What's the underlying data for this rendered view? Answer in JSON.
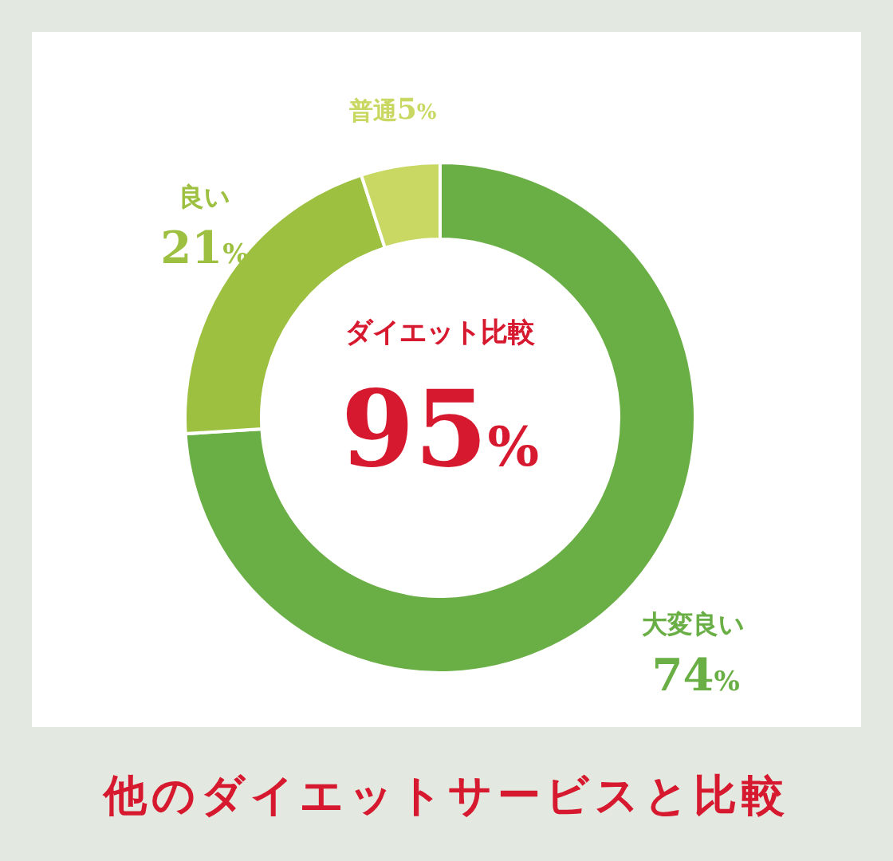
{
  "chart_data": {
    "type": "donut",
    "title": "他のダイエットサービスと比較",
    "categories": [
      "大変良い",
      "良い",
      "普通"
    ],
    "values": [
      74,
      21,
      5
    ],
    "value_labels": [
      "74%",
      "21%",
      "5%"
    ],
    "colors": [
      "#6aaf46",
      "#9dc040",
      "#c8d862"
    ],
    "annotations": [
      "ダイエット比較",
      "95%"
    ]
  }
}
